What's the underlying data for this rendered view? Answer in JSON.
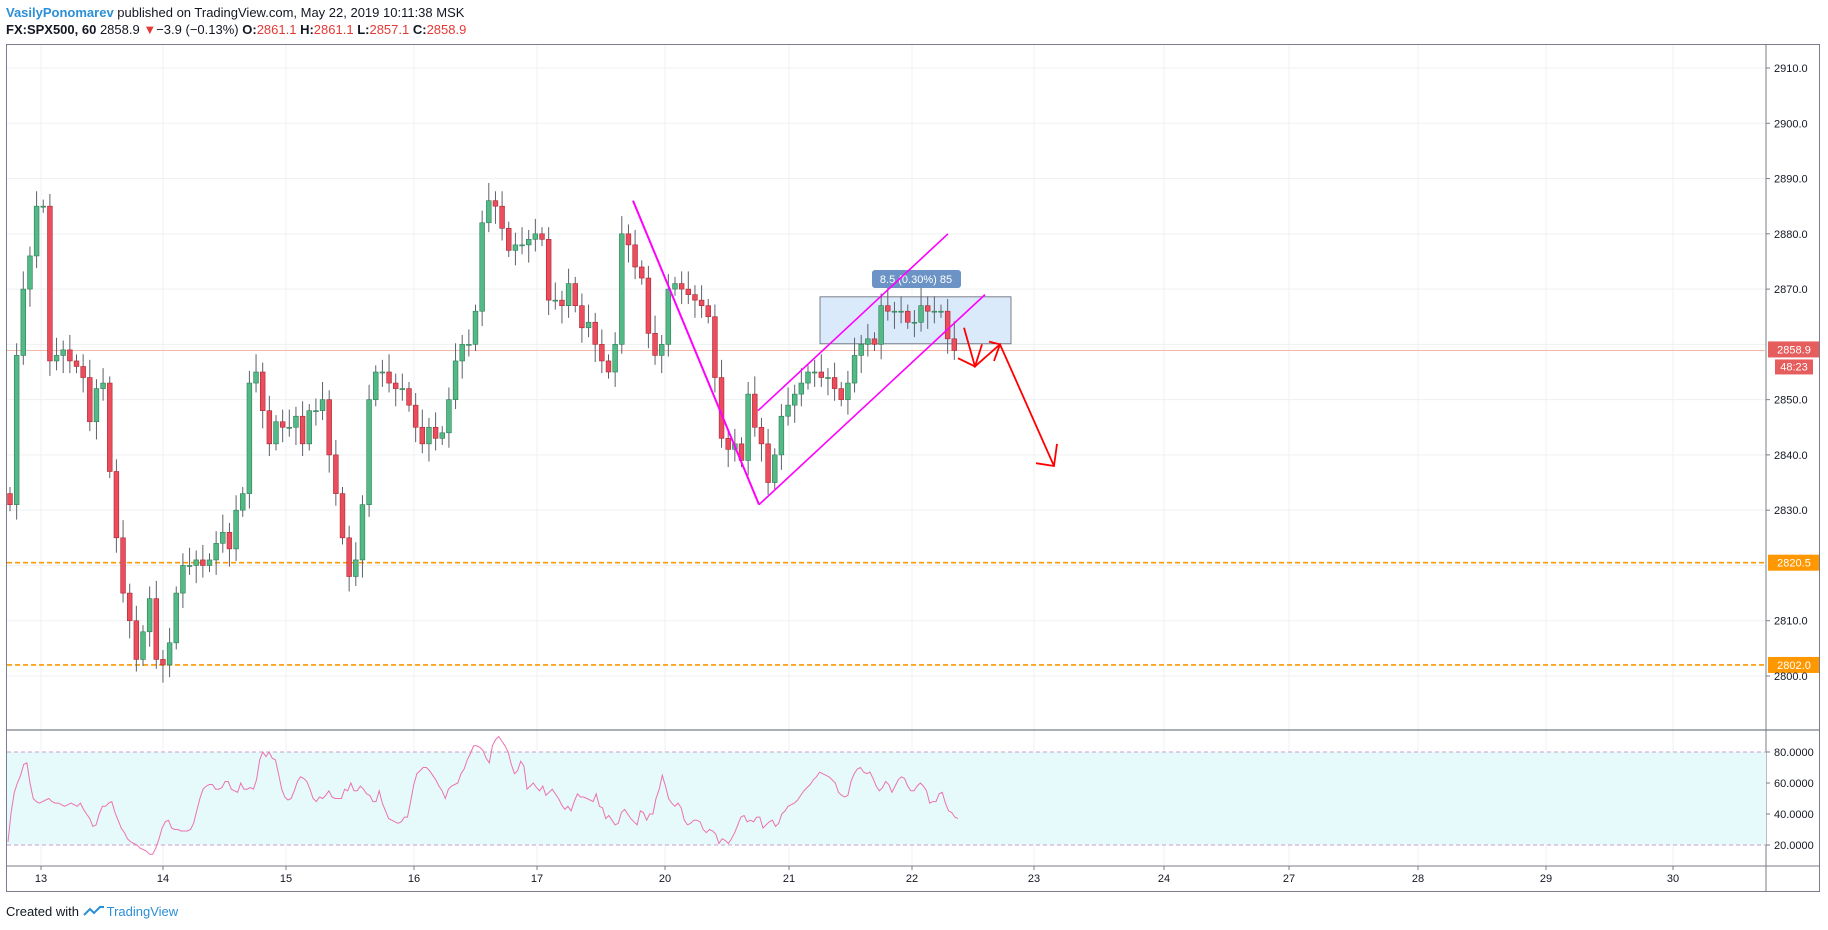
{
  "header": {
    "author": "VasilyPonomarev",
    "published": "published on TradingView.com, May 22, 2019 10:11:38 MSK",
    "symbol": "FX:SPX500, 60",
    "last": "2858.9",
    "change_arrow": "▼",
    "change": "−3.9 (−0.13%)",
    "o_label": "O:",
    "o_val": "2861.1",
    "h_label": "H:",
    "h_val": "2861.1",
    "l_label": "L:",
    "l_val": "2857.1",
    "c_label": "C:",
    "c_val": "2858.9"
  },
  "footer": {
    "created": "Created with",
    "brand": "TradingView"
  },
  "colors": {
    "up": "#53b987",
    "down": "#eb4d5c",
    "wick": "#5d606b",
    "magenta": "#ff00ff",
    "arrow": "#ff0000",
    "level": "#ff9800",
    "rsi_line": "#ec73b0",
    "rsi_band": "#e6f9fb",
    "range_box": "#dbeafb",
    "price_badge": "#e55d5d"
  },
  "chart_data": {
    "type": "candlestick",
    "interval": "60",
    "price_axis": {
      "ticks": [
        "2910.0",
        "2900.0",
        "2890.0",
        "2880.0",
        "2870.0",
        "2850.0",
        "2840.0",
        "2830.0",
        "2810.0",
        "2800.0"
      ],
      "range": [
        2791,
        2914
      ]
    },
    "time_axis": {
      "ticks": [
        "13",
        "14",
        "15",
        "16",
        "17",
        "20",
        "21",
        "22",
        "23",
        "24",
        "27",
        "28",
        "29",
        "30"
      ]
    },
    "current_price": {
      "value": "2858.9",
      "countdown": "48:23"
    },
    "horizontal_levels": [
      {
        "value": 2820.5,
        "label": "2820.5"
      },
      {
        "value": 2802.0,
        "label": "2802.0"
      }
    ],
    "closes": [
      2831,
      2858,
      2870,
      2876,
      2885,
      2885,
      2857,
      2858,
      2859,
      2857,
      2856,
      2854,
      2846,
      2852,
      2853,
      2837,
      2825,
      2815,
      2810,
      2803,
      2808,
      2814,
      2803,
      2802,
      2806,
      2815,
      2820,
      2820,
      2821,
      2820,
      2821,
      2824,
      2826,
      2823,
      2830,
      2833,
      2853,
      2855,
      2848,
      2842,
      2846,
      2845,
      2845,
      2847,
      2842,
      2848,
      2848,
      2850,
      2840,
      2833,
      2825,
      2818,
      2821,
      2831,
      2850,
      2855,
      2855,
      2853,
      2852,
      2852,
      2849,
      2845,
      2842,
      2845,
      2843,
      2844,
      2850,
      2857,
      2860,
      2860,
      2866,
      2882,
      2886,
      2885,
      2881,
      2877,
      2878,
      2878,
      2879,
      2880,
      2879,
      2868,
      2868,
      2867,
      2871,
      2867,
      2863,
      2864,
      2860,
      2857,
      2855,
      2860,
      2880,
      2878,
      2874,
      2872,
      2862,
      2858,
      2860,
      2870,
      2871,
      2870,
      2869,
      2868,
      2867,
      2865,
      2854,
      2843,
      2841,
      2842,
      2839,
      2851,
      2845,
      2842,
      2835,
      2840,
      2847,
      2849,
      2851,
      2853,
      2855,
      2855,
      2854,
      2854,
      2852,
      2850,
      2853,
      2858,
      2860,
      2861,
      2860,
      2867,
      2866,
      2866,
      2866,
      2864,
      2864,
      2867,
      2866,
      2866,
      2866,
      2861,
      2858.9
    ],
    "ohlc_source": "FX:SPX500 hourly",
    "trend_lines": [
      {
        "name": "magenta-impulse",
        "from": [
          "17 (late)",
          2886
        ],
        "to": [
          "20 (late)",
          2831
        ]
      },
      {
        "name": "magenta-channel-lower",
        "from": [
          "20 (late)",
          2831
        ],
        "to": [
          "22",
          2869
        ]
      },
      {
        "name": "magenta-channel-upper",
        "from": [
          "20 (late)",
          2848
        ],
        "to": [
          "22",
          2880
        ]
      }
    ],
    "range_measure": {
      "label": "8.5 (0.30%) 85",
      "top": 2868.6,
      "bottom": 2860.1
    },
    "projection_arrows": [
      {
        "path": [
          [
            2864
          ],
          [
            2856
          ],
          [
            2860
          ]
        ]
      },
      {
        "path": [
          [
            2860
          ],
          [
            2838
          ]
        ]
      }
    ],
    "rsi": {
      "ticks": [
        "80.0000",
        "60.0000",
        "40.0000",
        "20.0000"
      ],
      "upper": 80,
      "lower": 20,
      "values": [
        22,
        41,
        54,
        60,
        65,
        72,
        73,
        60,
        50,
        48,
        47,
        48,
        49,
        50,
        48,
        47,
        47,
        46,
        45,
        46,
        47,
        46,
        45,
        47,
        43,
        40,
        37,
        32,
        33,
        40,
        45,
        45,
        47,
        48,
        41,
        36,
        31,
        28,
        24,
        22,
        21,
        20,
        18,
        17,
        16,
        14,
        14,
        18,
        24,
        31,
        35,
        36,
        31,
        30,
        30,
        29,
        29,
        29,
        30,
        34,
        42,
        50,
        56,
        58,
        59,
        59,
        56,
        56,
        57,
        61,
        61,
        56,
        55,
        54,
        60,
        56,
        56,
        57,
        56,
        62,
        75,
        80,
        77,
        80,
        76,
        75,
        66,
        56,
        51,
        49,
        50,
        55,
        61,
        64,
        63,
        61,
        56,
        50,
        48,
        51,
        50,
        52,
        55,
        51,
        50,
        50,
        50,
        56,
        55,
        60,
        55,
        55,
        58,
        56,
        53,
        52,
        48,
        48,
        55,
        47,
        42,
        37,
        36,
        35,
        34,
        35,
        38,
        38,
        48,
        59,
        66,
        68,
        70,
        70,
        68,
        65,
        62,
        58,
        55,
        50,
        56,
        58,
        59,
        60,
        66,
        69,
        75,
        79,
        84,
        84,
        83,
        81,
        76,
        73,
        84,
        88,
        90,
        87,
        84,
        80,
        72,
        66,
        68,
        74,
        71,
        56,
        58,
        60,
        57,
        55,
        58,
        52,
        54,
        56,
        53,
        50,
        46,
        43,
        45,
        42,
        48,
        53,
        51,
        51,
        50,
        49,
        48,
        53,
        45,
        44,
        37,
        39,
        36,
        33,
        34,
        41,
        43,
        40,
        37,
        35,
        33,
        42,
        41,
        36,
        40,
        40,
        50,
        56,
        65,
        58,
        50,
        47,
        45,
        47,
        44,
        36,
        33,
        34,
        36,
        36,
        35,
        30,
        28,
        30,
        29,
        27,
        21,
        24,
        23,
        21,
        24,
        28,
        33,
        38,
        39,
        35,
        36,
        35,
        38,
        38,
        31,
        33,
        35,
        36,
        32,
        34,
        40,
        42,
        45,
        46,
        47,
        49,
        52,
        55,
        57,
        59,
        62,
        64,
        67,
        66,
        65,
        64,
        62,
        60,
        54,
        52,
        51,
        52,
        61,
        66,
        69,
        70,
        67,
        66,
        67,
        63,
        58,
        55,
        57,
        61,
        59,
        54,
        58,
        62,
        64,
        63,
        58,
        55,
        55,
        58,
        60,
        58,
        55,
        47,
        48,
        48,
        53,
        54,
        47,
        42,
        41,
        38,
        37
      ]
    }
  }
}
